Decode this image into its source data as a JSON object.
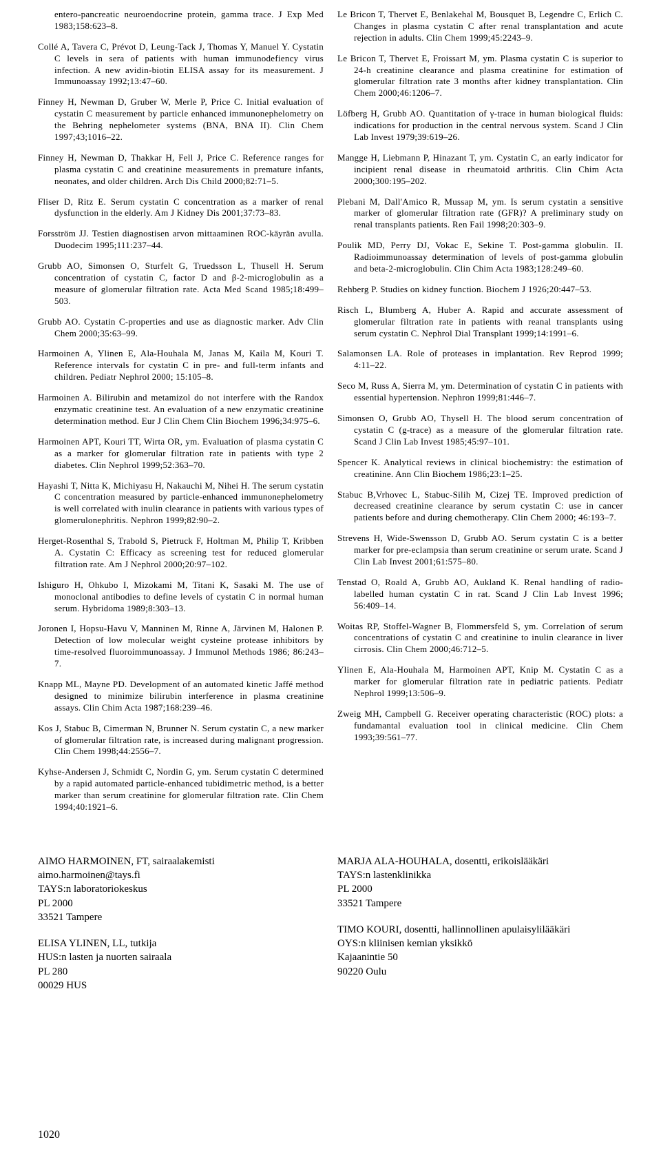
{
  "refs_left": [
    "entero-pancreatic neuroendocrine protein, gamma trace. J Exp Med 1983;158:623–8.",
    "Collé A, Tavera C, Prévot D, Leung-Tack J, Thomas Y, Manuel Y. Cystatin C levels in sera of patients with human immunodefiency virus infection. A new avidin-biotin ELISA assay for its measurement. J Immunoassay 1992;13:47–60.",
    "Finney H, Newman D, Gruber W, Merle P, Price C. Initial evaluation of cystatin C measurement by particle enhanced immunonephelometry on the Behring nephelometer systems (BNA, BNA II). Clin Chem 1997;43;1016–22.",
    "Finney H, Newman D, Thakkar H, Fell J, Price C. Reference ranges for plasma cystatin C and creatinine measurements in premature infants, neonates, and older children. Arch Dis Child 2000;82:71–5.",
    "Fliser D, Ritz E. Serum cystatin C concentration as a marker of renal dysfunction in the elderly. Am J Kidney Dis 2001;37:73–83.",
    "Forsström JJ. Testien diagnostisen arvon mittaaminen ROC-käyrän avulla. Duodecim 1995;111:237–44.",
    "Grubb AO, Simonsen O, Sturfelt G, Truedsson L, Thusell H. Serum concentration of cystatin C, factor D and β-2-microglobulin as a measure of glomerular filtration rate. Acta Med Scand 1985;18:499–503.",
    "Grubb AO. Cystatin C-properties and use as diagnostic marker. Adv Clin Chem 2000;35:63–99.",
    "Harmoinen A, Ylinen E, Ala-Houhala M, Janas M, Kaila M, Kouri T. Reference intervals for cystatin C in pre- and full-term infants and children. Pediatr Nephrol 2000; 15:105–8.",
    "Harmoinen A. Bilirubin and metamizol do not interfere with the Randox enzymatic creatinine test. An evaluation of a new enzymatic creatinine determination method. Eur J Clin Chem Clin Biochem 1996;34:975–6.",
    "Harmoinen APT, Kouri TT, Wirta OR, ym. Evaluation of plasma cystatin C as a marker for glomerular filtration rate in patients with type 2 diabetes. Clin Nephrol 1999;52:363–70.",
    "Hayashi T, Nitta K, Michiyasu H, Nakauchi M, Nihei H. The serum cystatin C concentration measured by particle-enhanced immunonephelometry is well correlated with inulin clearance in patients with various types of glomerulonephritis. Nephron 1999;82:90–2.",
    "Herget-Rosenthal S, Trabold S, Pietruck F, Holtman M, Philip T, Kribben A. Cystatin C: Efficacy as screening test for reduced glomerular filtration rate. Am J Nephrol 2000;20:97–102.",
    "Ishiguro H, Ohkubo I, Mizokami M, Titani K, Sasaki M. The use of monoclonal antibodies to define levels of cystatin C in normal human serum. Hybridoma 1989;8:303–13.",
    "Joronen I, Hopsu-Havu V, Manninen M, Rinne A, Järvinen M, Halonen P. Detection of low molecular weight cysteine protease inhibitors by time-resolved fluoroimmunoassay. J Immunol Methods 1986; 86:243–7.",
    "Knapp ML, Mayne PD. Development of an automated kinetic Jaffé method designed to minimize bilirubin interference in plasma creatinine assays. Clin Chim Acta 1987;168:239–46.",
    "Kos J, Stabuc B, Cimerman N, Brunner N. Serum cystatin C, a new marker of glomerular filtration rate, is increased during malignant progression. Clin Chem 1998;44:2556–7.",
    "Kyhse-Andersen J, Schmidt C, Nordin G, ym. Serum cystatin C determined by a rapid automated particle-enhanced tubidimetric method, is a better marker than serum creatinine for glomerular filtration rate. Clin Chem 1994;40:1921–6."
  ],
  "refs_right": [
    "Le Bricon T, Thervet E, Benlakehal M, Bousquet B, Legendre C, Erlich C. Changes in plasma cystatin C after renal transplantation and acute rejection in adults. Clin Chem 1999;45:2243–9.",
    "Le Bricon T, Thervet E, Froissart M, ym. Plasma cystatin C is superior to 24-h creatinine clearance and plasma creatinine for estimation of glomerular filtration rate 3 months after kidney transplantation. Clin Chem 2000;46:1206–7.",
    "Löfberg H, Grubb AO. Quantitation of γ-trace in human biological fluids: indications for production in the central nervous system. Scand J Clin Lab Invest 1979;39:619–26.",
    "Mangge H, Liebmann P, Hinazant T, ym. Cystatin C, an early indicator for incipient renal disease in rheumatoid arthritis. Clin Chim Acta 2000;300:195–202.",
    "Plebani M, Dall'Amico R, Mussap M, ym. Is serum cystatin a sensitive marker of glomerular filtration rate (GFR)? A preliminary study on renal transplants patients. Ren Fail 1998;20:303–9.",
    "Poulik MD, Perry DJ, Vokac E, Sekine T. Post-gamma globulin. II. Radioimmunoassay determination of levels of post-gamma globulin and beta-2-microglobulin. Clin Chim Acta 1983;128:249–60.",
    "Rehberg P. Studies on kidney function. Biochem J 1926;20:447–53.",
    "Risch L, Blumberg A, Huber A. Rapid and accurate assessment of glomerular filtration rate in patients with reanal transplants using serum cystatin C. Nephrol Dial Transplant 1999;14:1991–6.",
    "Salamonsen LA. Role of proteases in implantation. Rev Reprod 1999; 4:11–22.",
    "Seco M, Russ A, Sierra M, ym. Determination of cystatin C in patients with essential hypertension. Nephron 1999;81:446–7.",
    "Simonsen O, Grubb AO, Thysell H. The blood serum concentration of cystatin C (g-trace) as a measure of the glomerular filtration rate. Scand J Clin Lab Invest 1985;45:97–101.",
    "Spencer K. Analytical reviews in clinical biochemistry: the estimation of creatinine. Ann Clin Biochem 1986;23:1–25.",
    "Stabuc B,Vrhovec L, Stabuc-Silih M, Cizej TE. Improved prediction of decreased creatinine clearance by serum cystatin C: use in cancer patients before and during chemotherapy. Clin Chem 2000; 46:193–7.",
    "Strevens H, Wide-Swensson D, Grubb AO. Serum cystatin C is a better marker for pre-eclampsia than serum creatinine or serum urate. Scand J Clin Lab Invest 2001;61:575–80.",
    "Tenstad O, Roald A, Grubb AO, Aukland K. Renal handling of radio-labelled human cystatin C in rat. Scand J Clin Lab Invest 1996; 56:409–14.",
    "Woitas RP, Stoffel-Wagner B, Flommersfeld S, ym. Correlation of serum concentrations of cystatin C and creatinine to inulin clearance in liver cirrosis. Clin Chem 2000;46:712–5.",
    "Ylinen E, Ala-Houhala M, Harmoinen APT, Knip M. Cystatin C as a marker for glomerular filtration rate in pediatric patients. Pediatr Nephrol 1999;13:506–9.",
    "Zweig MH, Campbell G. Receiver operating characteristic (ROC) plots: a fundamantal evaluation tool in clinical medicine. Clin Chem 1993;39:561–77."
  ],
  "authors_left": [
    {
      "lines": [
        "AIMO HARMOINEN, FT, sairaalakemisti",
        "aimo.harmoinen@tays.fi",
        "TAYS:n laboratoriokeskus",
        "PL 2000",
        "33521 Tampere"
      ]
    },
    {
      "lines": [
        "ELISA YLINEN, LL, tutkija",
        "HUS:n lasten ja nuorten sairaala",
        "PL 280",
        "00029 HUS"
      ]
    }
  ],
  "authors_right": [
    {
      "lines": [
        "MARJA ALA-HOUHALA, dosentti, erikoislääkäri",
        "TAYS:n lastenklinikka",
        "PL 2000",
        "33521 Tampere"
      ]
    },
    {
      "lines": [
        "TIMO KOURI, dosentti, hallinnollinen apulaisylilääkäri",
        "OYS:n kliinisen kemian yksikkö",
        "Kajaanintie 50",
        "90220 Oulu"
      ]
    }
  ],
  "page_number": "1020"
}
